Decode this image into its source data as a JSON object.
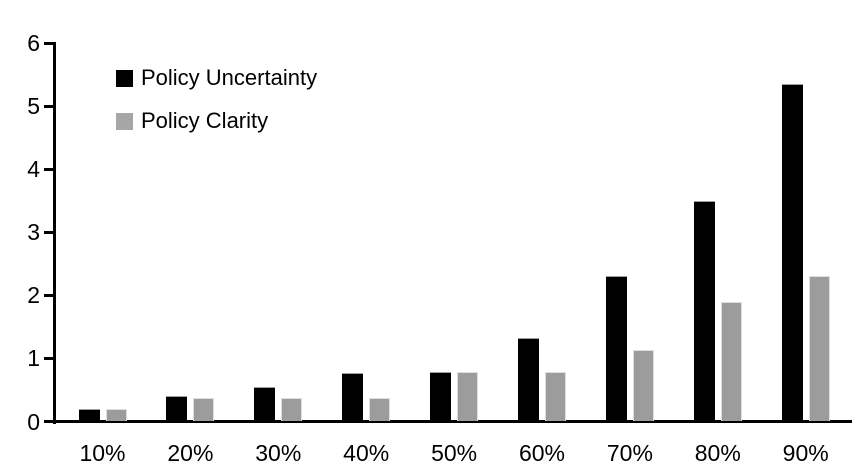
{
  "chart_data": {
    "type": "bar",
    "title": "",
    "xlabel": "",
    "ylabel": "",
    "categories": [
      "10%",
      "20%",
      "30%",
      "40%",
      "50%",
      "60%",
      "70%",
      "80%",
      "90%"
    ],
    "series": [
      {
        "name": "Policy Uncertainty",
        "color": "#000000",
        "values": [
          0.2,
          0.4,
          0.55,
          0.77,
          0.78,
          1.33,
          2.3,
          3.5,
          5.35
        ]
      },
      {
        "name": "Policy Clarity",
        "color": "#9c9c9c",
        "values": [
          0.2,
          0.38,
          0.38,
          0.38,
          0.78,
          0.78,
          1.13,
          1.9,
          2.3
        ]
      }
    ],
    "ylim": [
      0,
      6
    ],
    "yticks": [
      0,
      1,
      2,
      3,
      4,
      5,
      6
    ],
    "grid": false,
    "legend_position": "top-left",
    "axis_color": "#000000",
    "background": "#ffffff"
  }
}
